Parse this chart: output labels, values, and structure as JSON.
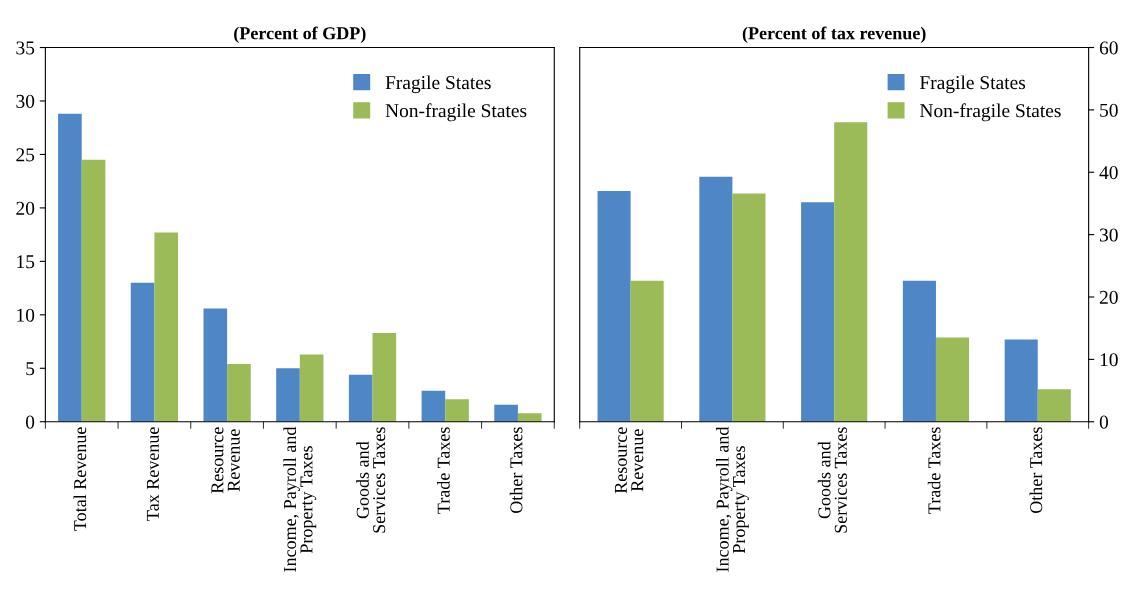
{
  "chart_data": [
    {
      "type": "bar",
      "title": "(Percent of GDP)",
      "categories": [
        "Total Revenue",
        "Tax Revenue",
        "Resource\nRevenue",
        "Income, Payroll and\nProperty Taxes",
        "Goods and\nServices Taxes",
        "Trade Taxes",
        "Other Taxes"
      ],
      "series": [
        {
          "name": "Fragile States",
          "color": "#4f86c6",
          "values": [
            28.8,
            13.0,
            10.6,
            5.0,
            4.4,
            2.9,
            1.6
          ]
        },
        {
          "name": "Non-fragile States",
          "color": "#9bbb59",
          "values": [
            24.5,
            17.7,
            5.4,
            6.3,
            8.3,
            2.1,
            0.8
          ]
        }
      ],
      "ylim": [
        0,
        35
      ],
      "yticks": [
        0,
        5,
        10,
        15,
        20,
        25,
        30,
        35
      ],
      "grid": false,
      "legend": "top right"
    },
    {
      "type": "bar",
      "title": "(Percent of tax revenue)",
      "categories": [
        "Resource\nRevenue",
        "Income, Payroll and\nProperty Taxes",
        "Goods and\nServices Taxes",
        "Trade Taxes",
        "Other Taxes"
      ],
      "series": [
        {
          "name": "Fragile States",
          "color": "#4f86c6",
          "values": [
            37.0,
            39.3,
            35.2,
            22.6,
            13.2
          ]
        },
        {
          "name": "Non-fragile States",
          "color": "#9bbb59",
          "values": [
            22.6,
            36.6,
            48.0,
            13.5,
            5.2
          ]
        }
      ],
      "ylim": [
        0,
        60
      ],
      "yticks": [
        0,
        10,
        20,
        30,
        40,
        50,
        60
      ],
      "grid": false,
      "legend": "top right"
    }
  ]
}
